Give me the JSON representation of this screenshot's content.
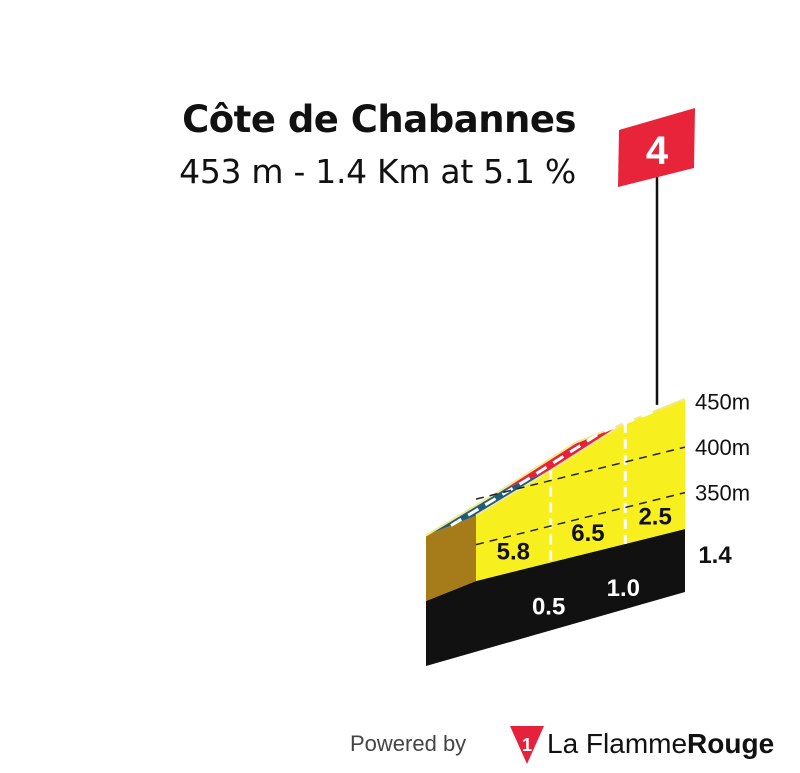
{
  "climb": {
    "name": "Côte de Chabannes",
    "summary": "453 m - 1.4 Km at 5.1 %",
    "category": "4"
  },
  "footer": {
    "powered_by": "Powered by",
    "brand_part1": "La Flamme",
    "brand_part2": "Rouge",
    "logo_numeral": "1"
  },
  "colors": {
    "face": "#f8ef1f",
    "side": "#a67c1a",
    "base": "#111111",
    "flag": "#e8243a",
    "seg_5_8": "#1d5b80",
    "seg_6_5": "#e5213c",
    "seg_2_5": "#58c92a"
  },
  "chart_data": {
    "type": "area",
    "title": "Côte de Chabannes",
    "distance_km": [
      0,
      0.5,
      1.0,
      1.4
    ],
    "elevation_m": [
      382,
      411,
      443,
      453
    ],
    "segments": [
      {
        "from_km": 0,
        "to_km": 0.5,
        "gradient": "5.8"
      },
      {
        "from_km": 0.5,
        "to_km": 1.0,
        "gradient": "6.5"
      },
      {
        "from_km": 1.0,
        "to_km": 1.4,
        "gradient": "2.5"
      }
    ],
    "distance_ticks": [
      "0.5",
      "1.0",
      "1.4"
    ],
    "elevation_ticks": [
      {
        "value": 350,
        "label": "350m"
      },
      {
        "value": 400,
        "label": "400m"
      },
      {
        "value": 450,
        "label": "450m"
      }
    ],
    "ylim": [
      310,
      460
    ],
    "category": "4"
  }
}
